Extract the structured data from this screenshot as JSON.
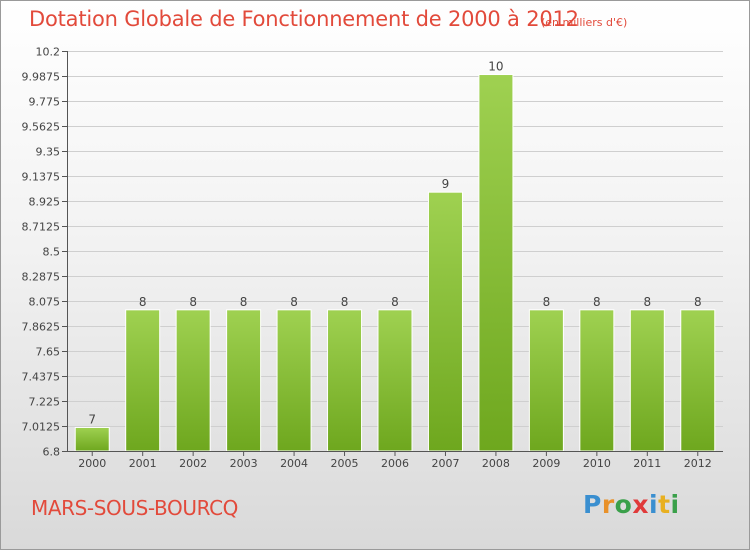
{
  "header": {
    "title": "Dotation Globale de Fonctionnement de 2000 à 2012",
    "unit": "(en milliers d'€)"
  },
  "footer": {
    "place": "MARS-SOUS-BOURCQ",
    "logo": "Proxiti",
    "logo_colors": [
      "#3a8fd0",
      "#e8912a",
      "#3aa04a",
      "#e03a3a",
      "#3a8fd0",
      "#e8b020",
      "#3aa04a"
    ]
  },
  "colors": {
    "title": "#e24a3b",
    "bar_top": "#9fd151",
    "bar_bottom": "#6ea71e",
    "grid": "#cfcfcf",
    "axis": "#555555"
  },
  "chart_data": {
    "type": "bar",
    "title": "Dotation Globale de Fonctionnement de 2000 à 2012",
    "categories": [
      "2000",
      "2001",
      "2002",
      "2003",
      "2004",
      "2005",
      "2006",
      "2007",
      "2008",
      "2009",
      "2010",
      "2011",
      "2012"
    ],
    "values": [
      7,
      8,
      8,
      8,
      8,
      8,
      8,
      9,
      10,
      8,
      8,
      8,
      8
    ],
    "data_labels": [
      "7",
      "8",
      "8",
      "8",
      "8",
      "8",
      "8",
      "9",
      "10",
      "8",
      "8",
      "8",
      "8"
    ],
    "ylim": [
      6.8,
      10.2
    ],
    "y_ticks": [
      6.8,
      7.0125,
      7.225,
      7.4375,
      7.65,
      7.8625,
      8.075,
      8.2875,
      8.5,
      8.7125,
      8.925,
      9.1375,
      9.35,
      9.5625,
      9.775,
      9.9875,
      10.2
    ],
    "y_tick_labels": [
      "6.8",
      "7.0125",
      "7.225",
      "7.4375",
      "7.65",
      "7.8625",
      "8.075",
      "8.2875",
      "8.5",
      "8.7125",
      "8.925",
      "9.1375",
      "9.35",
      "9.5625",
      "9.775",
      "9.9875",
      "10.2"
    ],
    "grid": true,
    "xlabel": "",
    "ylabel": ""
  }
}
